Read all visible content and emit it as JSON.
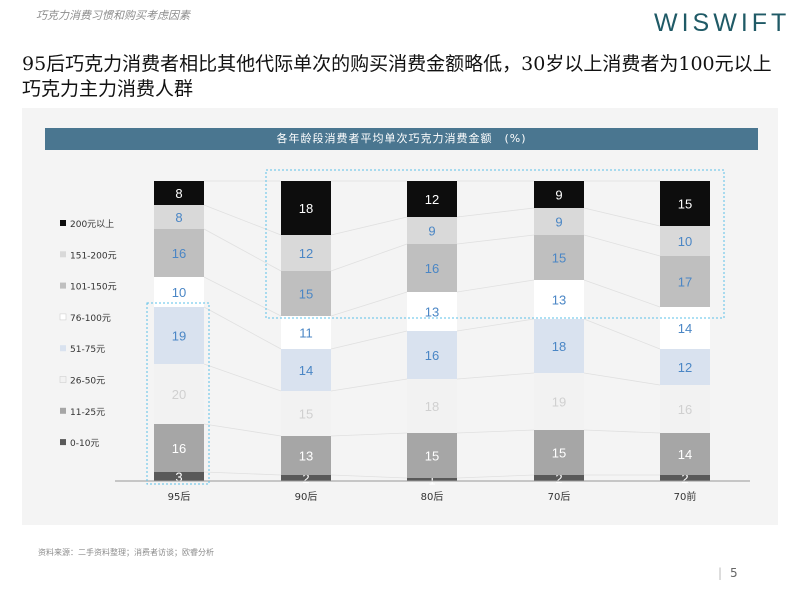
{
  "header": {
    "section_label": "巧克力消费习惯和购买考虑因素",
    "logo_text": "WISWIFT"
  },
  "headline": "95后巧克力消费者相比其他代际单次的购买消费金额略低，30岁以上消费者为100元以上巧克力主力消费人群",
  "footer": {
    "source": "资料来源：二手资料整理；消费者访谈；欧睿分析",
    "page_number": "5"
  },
  "colors": {
    "title_bar": "#4a7690",
    "highlight_box": "#5bc0e8"
  },
  "chart_data": {
    "type": "bar",
    "stacked": true,
    "percent": true,
    "title": "各年龄段消费者平均单次巧克力消费金额　(%)",
    "categories": [
      "95后",
      "90后",
      "80后",
      "70后",
      "70前"
    ],
    "series": [
      {
        "name": "0-10元",
        "values": [
          3,
          2,
          1,
          2,
          2
        ],
        "color": "#595959",
        "label_color": "#ffffff"
      },
      {
        "name": "11-25元",
        "values": [
          16,
          13,
          15,
          15,
          14
        ],
        "color": "#a6a6a6",
        "label_color": "#ffffff"
      },
      {
        "name": "26-50元",
        "values": [
          20,
          15,
          18,
          19,
          16
        ],
        "color": "#f2f2f2",
        "label_color": "#d0d0d0"
      },
      {
        "name": "51-75元",
        "values": [
          19,
          14,
          16,
          18,
          12
        ],
        "color": "#d9e2ef",
        "label_color": "#4a86c5"
      },
      {
        "name": "76-100元",
        "values": [
          10,
          11,
          13,
          13,
          14
        ],
        "color": "#ffffff",
        "label_color": "#4a86c5"
      },
      {
        "name": "101-150元",
        "values": [
          16,
          15,
          16,
          15,
          17
        ],
        "color": "#bfbfbf",
        "label_color": "#4a86c5"
      },
      {
        "name": "151-200元",
        "values": [
          8,
          12,
          9,
          9,
          10
        ],
        "color": "#d9d9d9",
        "label_color": "#4a86c5"
      },
      {
        "name": "200元以上",
        "values": [
          8,
          18,
          12,
          9,
          15
        ],
        "color": "#0d0d0d",
        "label_color": "#ffffff"
      }
    ],
    "legend_position": "left",
    "grid": false,
    "highlights": [
      {
        "categories": [
          "95后"
        ],
        "series_from": "0-10元",
        "series_to": "51-75元"
      },
      {
        "categories": [
          "90后",
          "80后",
          "70后",
          "70前"
        ],
        "series_from": "101-150元",
        "series_to": "200元以上"
      }
    ]
  }
}
